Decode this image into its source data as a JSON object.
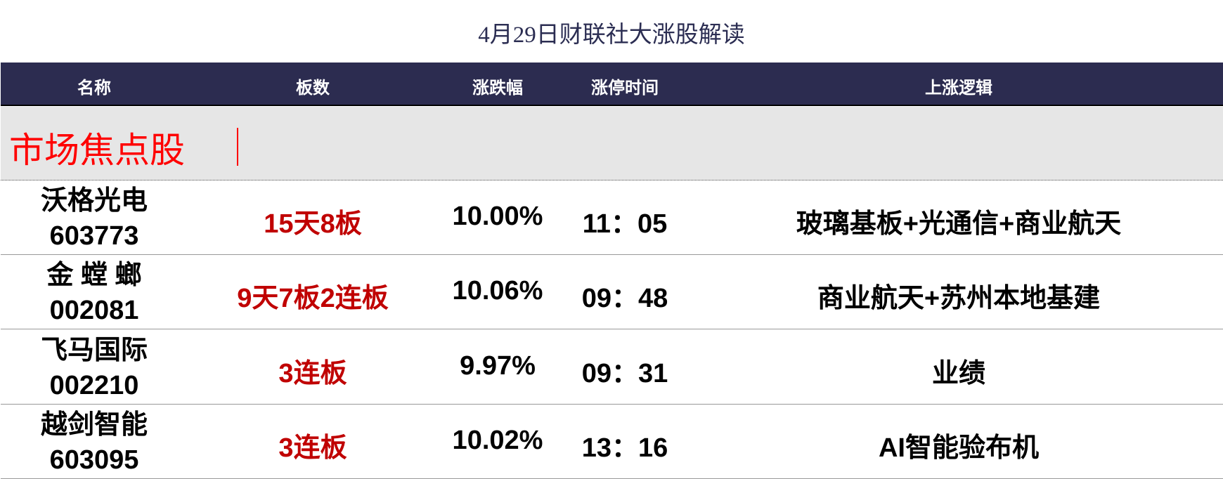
{
  "title": "4月29日财联社大涨股解读",
  "header": {
    "name": "名称",
    "boards": "板数",
    "change": "涨跌幅",
    "limit_time": "涨停时间",
    "logic": "上涨逻辑"
  },
  "section": {
    "label": "市场焦点股"
  },
  "rows": [
    {
      "name": "沃格光电",
      "code": "603773",
      "boards": "15天8板",
      "change": "10.00%",
      "time": "11：05",
      "logic": "玻璃基板+光通信+商业航天"
    },
    {
      "name": "金 螳 螂",
      "code": "002081",
      "boards": "9天7板2连板",
      "change": "10.06%",
      "time": "09：48",
      "logic": "商业航天+苏州本地基建"
    },
    {
      "name": "飞马国际",
      "code": "002210",
      "boards": "3连板",
      "change": "9.97%",
      "time": "09：31",
      "logic": "业绩"
    },
    {
      "name": "越剑智能",
      "code": "603095",
      "boards": "3连板",
      "change": "10.02%",
      "time": "13：16",
      "logic": "AI智能验布机"
    }
  ]
}
